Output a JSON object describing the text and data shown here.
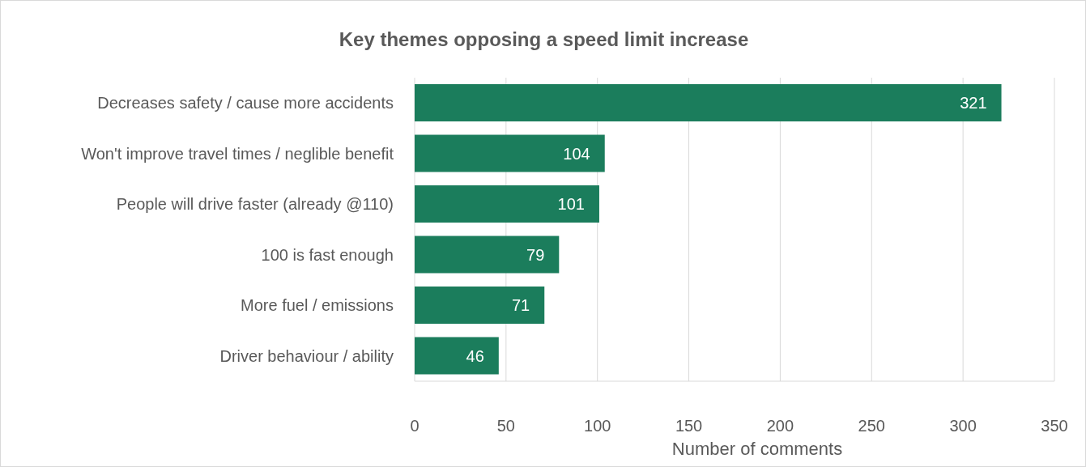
{
  "chart_data": {
    "type": "bar",
    "orientation": "horizontal",
    "title": "Key themes opposing a speed limit increase",
    "xlabel": "Number of comments",
    "categories": [
      "Decreases safety / cause more accidents",
      "Won't improve travel times / neglible benefit",
      "People will drive faster (already @110)",
      "100 is fast enough",
      "More fuel / emissions",
      "Driver behaviour / ability"
    ],
    "values": [
      321,
      104,
      101,
      79,
      71,
      46
    ],
    "color": "#1b7d5c",
    "xlim": [
      0,
      350
    ],
    "xticks": [
      0,
      50,
      100,
      150,
      200,
      250,
      300,
      350
    ],
    "grid": "x",
    "data_labels": true
  }
}
